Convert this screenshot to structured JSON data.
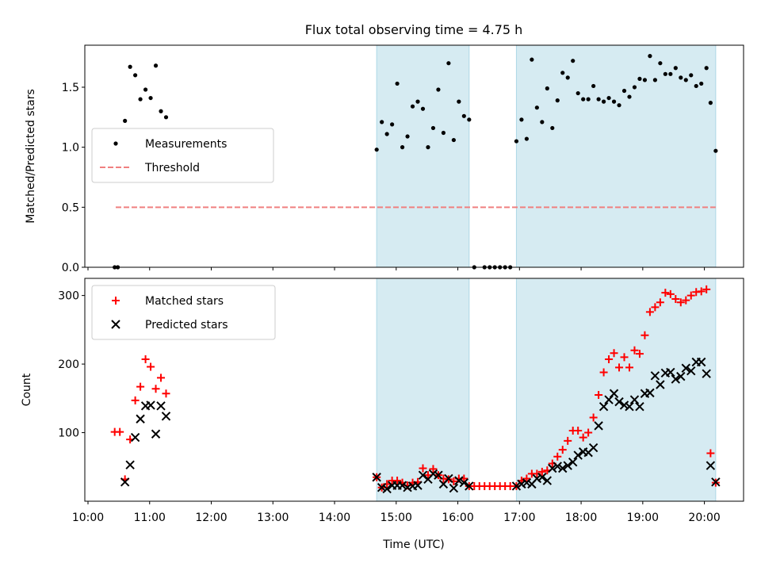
{
  "chart_data": {
    "title": "Flux total observing time = 4.75 h",
    "xlabel": "Time (UTC)",
    "x_ticks": [
      "10:00",
      "11:00",
      "12:00",
      "13:00",
      "14:00",
      "15:00",
      "16:00",
      "17:00",
      "18:00",
      "19:00",
      "20:00"
    ],
    "xlim": [
      "10:00",
      "20:40"
    ],
    "observing_windows": [
      [
        "14:41",
        "16:11"
      ],
      [
        "16:57",
        "20:11"
      ]
    ],
    "window_color": "#add8e6",
    "panels": [
      {
        "type": "scatter",
        "ylabel": "Matched/Predicted stars",
        "ylim": [
          0,
          1.85
        ],
        "y_ticks": [
          0.0,
          0.5,
          1.0,
          1.5
        ],
        "y_tick_labels": [
          "0.0",
          "0.5",
          "1.0",
          "1.5"
        ],
        "legend": {
          "placement": "center-left",
          "entries": [
            "Measurements",
            "Threshold"
          ]
        },
        "threshold": {
          "name": "Threshold",
          "value": 0.5,
          "x_range": [
            "10:27",
            "20:11"
          ],
          "color": "#f08080",
          "style": "dashed"
        },
        "series": [
          {
            "name": "Measurements",
            "marker": "dot",
            "color": "#000000",
            "points": [
              [
                "10:26",
                0.0
              ],
              [
                "10:29",
                0.0
              ],
              [
                "10:36",
                1.22
              ],
              [
                "10:41",
                1.67
              ],
              [
                "10:46",
                1.6
              ],
              [
                "10:51",
                1.4
              ],
              [
                "10:56",
                1.48
              ],
              [
                "11:01",
                1.41
              ],
              [
                "11:06",
                1.68
              ],
              [
                "11:11",
                1.3
              ],
              [
                "11:16",
                1.25
              ],
              [
                "14:41",
                0.98
              ],
              [
                "14:46",
                1.21
              ],
              [
                "14:51",
                1.11
              ],
              [
                "14:56",
                1.19
              ],
              [
                "15:01",
                1.53
              ],
              [
                "15:06",
                1.0
              ],
              [
                "15:11",
                1.09
              ],
              [
                "15:16",
                1.34
              ],
              [
                "15:21",
                1.38
              ],
              [
                "15:26",
                1.32
              ],
              [
                "15:31",
                1.0
              ],
              [
                "15:36",
                1.16
              ],
              [
                "15:41",
                1.48
              ],
              [
                "15:46",
                1.12
              ],
              [
                "15:51",
                1.7
              ],
              [
                "15:56",
                1.06
              ],
              [
                "16:01",
                1.38
              ],
              [
                "16:06",
                1.26
              ],
              [
                "16:11",
                1.23
              ],
              [
                "16:16",
                0.0
              ],
              [
                "16:26",
                0.0
              ],
              [
                "16:31",
                0.0
              ],
              [
                "16:36",
                0.0
              ],
              [
                "16:41",
                0.0
              ],
              [
                "16:46",
                0.0
              ],
              [
                "16:51",
                0.0
              ],
              [
                "16:57",
                1.05
              ],
              [
                "17:02",
                1.23
              ],
              [
                "17:07",
                1.07
              ],
              [
                "17:12",
                1.73
              ],
              [
                "17:17",
                1.33
              ],
              [
                "17:22",
                1.21
              ],
              [
                "17:27",
                1.49
              ],
              [
                "17:32",
                1.16
              ],
              [
                "17:37",
                1.39
              ],
              [
                "17:42",
                1.62
              ],
              [
                "17:47",
                1.58
              ],
              [
                "17:52",
                1.72
              ],
              [
                "17:57",
                1.45
              ],
              [
                "18:02",
                1.4
              ],
              [
                "18:07",
                1.4
              ],
              [
                "18:12",
                1.51
              ],
              [
                "18:17",
                1.4
              ],
              [
                "18:22",
                1.38
              ],
              [
                "18:27",
                1.41
              ],
              [
                "18:32",
                1.38
              ],
              [
                "18:37",
                1.35
              ],
              [
                "18:42",
                1.47
              ],
              [
                "18:47",
                1.42
              ],
              [
                "18:52",
                1.5
              ],
              [
                "18:57",
                1.57
              ],
              [
                "19:02",
                1.56
              ],
              [
                "19:07",
                1.76
              ],
              [
                "19:12",
                1.56
              ],
              [
                "19:17",
                1.7
              ],
              [
                "19:22",
                1.61
              ],
              [
                "19:27",
                1.61
              ],
              [
                "19:32",
                1.66
              ],
              [
                "19:37",
                1.58
              ],
              [
                "19:42",
                1.56
              ],
              [
                "19:47",
                1.6
              ],
              [
                "19:52",
                1.51
              ],
              [
                "19:57",
                1.53
              ],
              [
                "20:02",
                1.66
              ],
              [
                "20:06",
                1.37
              ],
              [
                "20:11",
                0.97
              ]
            ]
          }
        ]
      },
      {
        "type": "scatter",
        "ylabel": "Count",
        "ylim": [
          0,
          325
        ],
        "y_ticks": [
          100,
          200,
          300
        ],
        "y_tick_labels": [
          "100",
          "200",
          "300"
        ],
        "legend": {
          "placement": "top-left",
          "entries": [
            "Matched stars",
            "Predicted stars"
          ]
        },
        "series": [
          {
            "name": "Matched stars",
            "marker": "plus",
            "color": "#ff0000",
            "points": [
              [
                "10:26",
                101
              ],
              [
                "10:31",
                101
              ],
              [
                "10:36",
                32
              ],
              [
                "10:41",
                90
              ],
              [
                "10:46",
                147
              ],
              [
                "10:51",
                167
              ],
              [
                "10:56",
                207
              ],
              [
                "11:01",
                196
              ],
              [
                "11:06",
                164
              ],
              [
                "11:11",
                180
              ],
              [
                "11:16",
                157
              ],
              [
                "14:41",
                35
              ],
              [
                "14:46",
                20
              ],
              [
                "14:51",
                25
              ],
              [
                "14:56",
                30
              ],
              [
                "15:01",
                30
              ],
              [
                "15:06",
                27
              ],
              [
                "15:11",
                23
              ],
              [
                "15:16",
                27
              ],
              [
                "15:21",
                28
              ],
              [
                "15:26",
                48
              ],
              [
                "15:31",
                38
              ],
              [
                "15:36",
                47
              ],
              [
                "15:41",
                38
              ],
              [
                "15:46",
                33
              ],
              [
                "15:51",
                32
              ],
              [
                "15:56",
                29
              ],
              [
                "16:01",
                33
              ],
              [
                "16:06",
                33
              ],
              [
                "16:11",
                22
              ],
              [
                "16:16",
                22
              ],
              [
                "16:21",
                22
              ],
              [
                "16:26",
                22
              ],
              [
                "16:31",
                22
              ],
              [
                "16:36",
                22
              ],
              [
                "16:41",
                22
              ],
              [
                "16:46",
                22
              ],
              [
                "16:51",
                22
              ],
              [
                "16:57",
                22
              ],
              [
                "17:02",
                30
              ],
              [
                "17:07",
                33
              ],
              [
                "17:12",
                40
              ],
              [
                "17:17",
                40
              ],
              [
                "17:22",
                43
              ],
              [
                "17:27",
                45
              ],
              [
                "17:32",
                55
              ],
              [
                "17:37",
                65
              ],
              [
                "17:42",
                75
              ],
              [
                "17:47",
                88
              ],
              [
                "17:52",
                103
              ],
              [
                "17:57",
                103
              ],
              [
                "18:02",
                93
              ],
              [
                "18:07",
                100
              ],
              [
                "18:12",
                122
              ],
              [
                "18:17",
                155
              ],
              [
                "18:22",
                188
              ],
              [
                "18:27",
                207
              ],
              [
                "18:32",
                216
              ],
              [
                "18:37",
                195
              ],
              [
                "18:42",
                210
              ],
              [
                "18:47",
                195
              ],
              [
                "18:52",
                220
              ],
              [
                "18:57",
                215
              ],
              [
                "19:02",
                242
              ],
              [
                "19:07",
                276
              ],
              [
                "19:12",
                283
              ],
              [
                "19:17",
                290
              ],
              [
                "19:22",
                304
              ],
              [
                "19:27",
                302
              ],
              [
                "19:32",
                295
              ],
              [
                "19:37",
                290
              ],
              [
                "19:42",
                293
              ],
              [
                "19:47",
                300
              ],
              [
                "19:52",
                305
              ],
              [
                "19:57",
                306
              ],
              [
                "20:02",
                309
              ],
              [
                "20:06",
                70
              ],
              [
                "20:11",
                27
              ]
            ]
          },
          {
            "name": "Predicted stars",
            "marker": "x",
            "color": "#000000",
            "points": [
              [
                "10:36",
                28
              ],
              [
                "10:41",
                53
              ],
              [
                "10:46",
                93
              ],
              [
                "10:51",
                120
              ],
              [
                "10:56",
                139
              ],
              [
                "11:01",
                140
              ],
              [
                "11:06",
                98
              ],
              [
                "11:11",
                139
              ],
              [
                "11:16",
                124
              ],
              [
                "14:41",
                35
              ],
              [
                "14:46",
                20
              ],
              [
                "14:51",
                18
              ],
              [
                "14:56",
                23
              ],
              [
                "15:01",
                23
              ],
              [
                "15:06",
                23
              ],
              [
                "15:11",
                20
              ],
              [
                "15:16",
                22
              ],
              [
                "15:21",
                23
              ],
              [
                "15:26",
                38
              ],
              [
                "15:31",
                32
              ],
              [
                "15:36",
                40
              ],
              [
                "15:41",
                38
              ],
              [
                "15:46",
                25
              ],
              [
                "15:51",
                33
              ],
              [
                "15:56",
                19
              ],
              [
                "16:01",
                30
              ],
              [
                "16:06",
                27
              ],
              [
                "16:11",
                22
              ],
              [
                "16:57",
                22
              ],
              [
                "17:02",
                25
              ],
              [
                "17:07",
                27
              ],
              [
                "17:12",
                25
              ],
              [
                "17:17",
                33
              ],
              [
                "17:22",
                35
              ],
              [
                "17:27",
                30
              ],
              [
                "17:32",
                48
              ],
              [
                "17:37",
                51
              ],
              [
                "17:42",
                48
              ],
              [
                "17:47",
                52
              ],
              [
                "17:52",
                57
              ],
              [
                "17:57",
                67
              ],
              [
                "18:02",
                72
              ],
              [
                "18:07",
                71
              ],
              [
                "18:12",
                78
              ],
              [
                "18:17",
                110
              ],
              [
                "18:22",
                138
              ],
              [
                "18:27",
                148
              ],
              [
                "18:32",
                157
              ],
              [
                "18:37",
                145
              ],
              [
                "18:42",
                140
              ],
              [
                "18:47",
                138
              ],
              [
                "18:52",
                148
              ],
              [
                "18:57",
                138
              ],
              [
                "19:02",
                157
              ],
              [
                "19:07",
                158
              ],
              [
                "19:12",
                183
              ],
              [
                "19:17",
                170
              ],
              [
                "19:22",
                187
              ],
              [
                "19:27",
                188
              ],
              [
                "19:32",
                178
              ],
              [
                "19:37",
                182
              ],
              [
                "19:42",
                194
              ],
              [
                "19:47",
                190
              ],
              [
                "19:52",
                203
              ],
              [
                "19:57",
                203
              ],
              [
                "20:02",
                186
              ],
              [
                "20:06",
                52
              ],
              [
                "20:11",
                28
              ]
            ]
          }
        ]
      }
    ]
  }
}
